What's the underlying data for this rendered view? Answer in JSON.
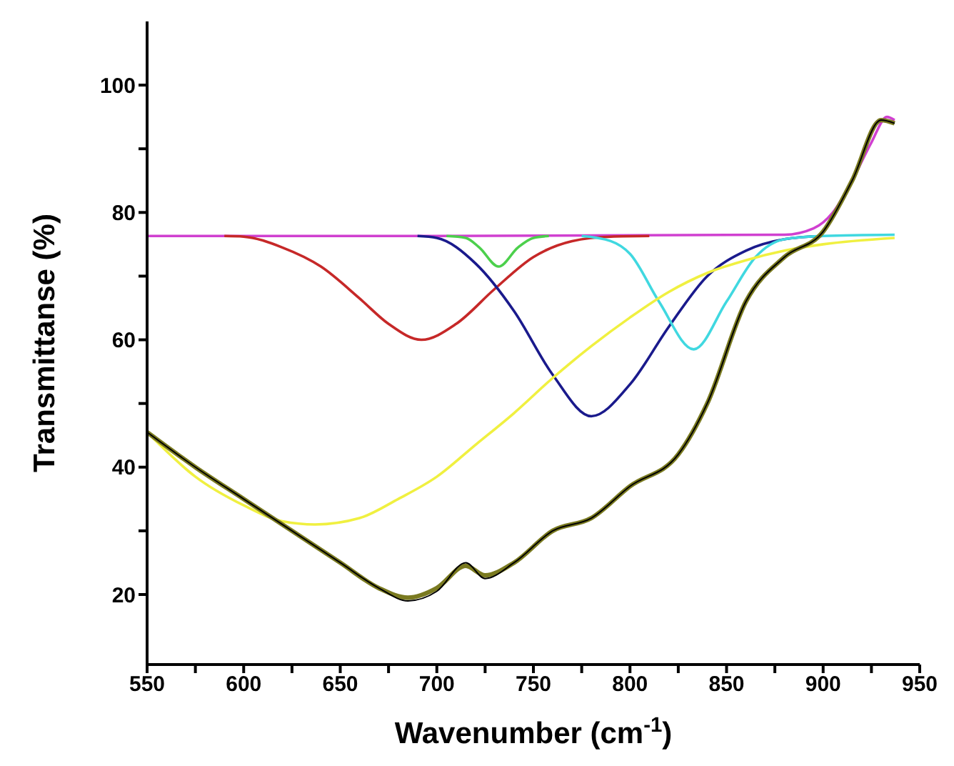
{
  "chart_data": {
    "type": "line",
    "xlabel": "Wavenumber (cm$^{-1}$)",
    "ylabel": "Transmittanse (%)",
    "xlim": [
      550,
      950
    ],
    "xticks": [
      550,
      {
        "value": 575,
        "label": null
      },
      600,
      {
        "value": 625,
        "label": null
      },
      650,
      {
        "value": 675,
        "label": null
      },
      700,
      {
        "value": 725,
        "label": null
      },
      750,
      {
        "value": 775,
        "label": null
      },
      800,
      {
        "value": 825,
        "label": null
      },
      850,
      {
        "value": 875,
        "label": null
      },
      900,
      {
        "value": 925,
        "label": null
      },
      950
    ],
    "ylim": [
      9,
      110
    ],
    "yticks": [
      20,
      {
        "value": 30,
        "label": null
      },
      40,
      {
        "value": 50,
        "label": null
      },
      60,
      {
        "value": 70,
        "label": null
      },
      80,
      {
        "value": 90,
        "label": null
      },
      100
    ],
    "grid": false,
    "series": [
      {
        "color": "#d040d0",
        "x": [
          550,
          700,
          880,
          895,
          905,
          915,
          925,
          933,
          937
        ],
        "values": [
          76.3,
          76.3,
          76.5,
          77.5,
          80,
          85,
          91,
          95,
          94.5
        ]
      },
      {
        "color": "#c62828",
        "x": [
          590,
          600,
          620,
          640,
          660,
          675,
          692,
          710,
          730,
          750,
          770,
          790,
          810
        ],
        "values": [
          76.3,
          76.2,
          74.5,
          71.5,
          66.5,
          62.5,
          60,
          62.5,
          68,
          73,
          75.5,
          76.2,
          76.3
        ]
      },
      {
        "color": "#4cd04c",
        "x": [
          705,
          715,
          722,
          732,
          742,
          750,
          758
        ],
        "values": [
          76.3,
          76,
          74.5,
          71.5,
          74.5,
          76,
          76.3
        ]
      },
      {
        "color": "#1a1a8c",
        "x": [
          690,
          700,
          720,
          740,
          760,
          780,
          800,
          820,
          840,
          860,
          880,
          900
        ],
        "values": [
          76.3,
          76,
          72,
          64.5,
          54.5,
          48,
          53,
          62,
          70,
          74,
          75.8,
          76.3
        ]
      },
      {
        "color": "#40d8e0",
        "x": [
          775,
          790,
          800,
          815,
          833,
          850,
          865,
          880,
          900,
          937
        ],
        "values": [
          76.3,
          75.5,
          73.5,
          66,
          58.5,
          66,
          73,
          75.8,
          76.3,
          76.5
        ]
      },
      {
        "color": "#f0f040",
        "x": [
          550,
          575,
          600,
          620,
          637,
          660,
          680,
          700,
          720,
          740,
          760,
          780,
          800,
          820,
          840,
          860,
          880,
          900,
          937
        ],
        "values": [
          45.5,
          38.5,
          34,
          31.5,
          31,
          32,
          35,
          38.5,
          43.5,
          48.5,
          54,
          59,
          63.5,
          67.5,
          70.5,
          72.5,
          74,
          75,
          76
        ]
      },
      {
        "color": "#7a7a20",
        "x": [
          550,
          575,
          600,
          625,
          650,
          670,
          685,
          700,
          715,
          725,
          740,
          760,
          780,
          800,
          825,
          840,
          860,
          880,
          900,
          915,
          930,
          937
        ],
        "values": [
          45.5,
          40,
          35,
          30,
          25,
          21,
          19.5,
          21,
          24.5,
          23,
          25,
          30,
          32,
          37,
          42,
          50,
          66,
          73,
          77,
          85,
          94.5,
          94
        ]
      },
      {
        "color": "#000000",
        "x": [
          550,
          575,
          600,
          625,
          650,
          670,
          685,
          700,
          715,
          725,
          740,
          760,
          780,
          800,
          825,
          840,
          860,
          880,
          900,
          915,
          930,
          937
        ],
        "values": [
          45.5,
          40,
          35,
          30,
          25,
          21,
          19,
          20.5,
          25,
          22.5,
          25,
          30,
          32,
          37,
          42,
          50,
          66,
          73,
          77,
          85,
          94.5,
          94
        ]
      }
    ]
  }
}
